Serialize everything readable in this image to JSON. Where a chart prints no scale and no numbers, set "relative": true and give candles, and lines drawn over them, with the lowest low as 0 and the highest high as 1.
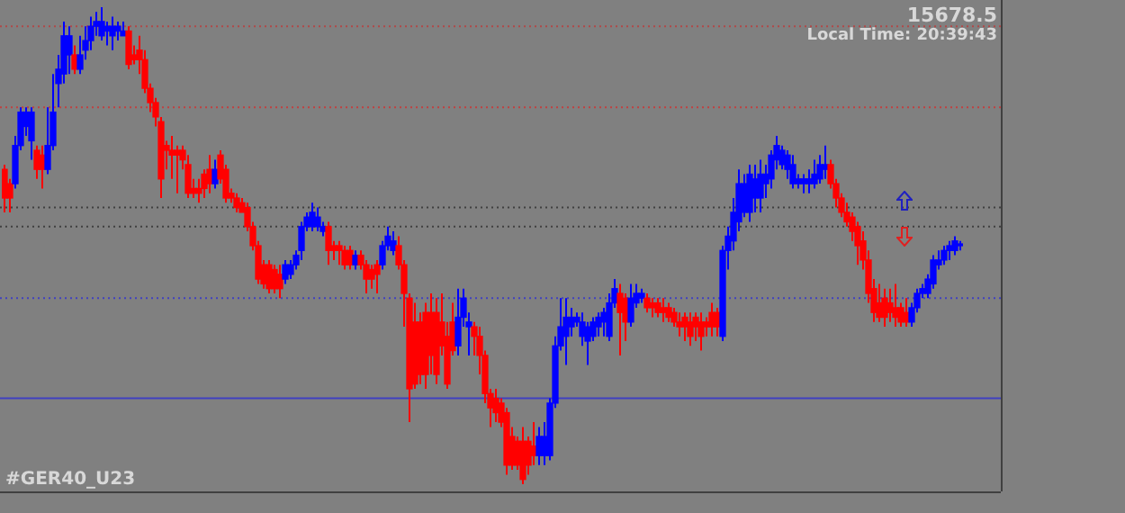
{
  "chart_data": {
    "type": "candlestick",
    "relative": true,
    "tick_labels": false,
    "legend": false,
    "colors": [
      "#ff0000",
      "#ff0000",
      "#0000ff",
      "#0000ff",
      "#0000ff",
      "#0000ff",
      "#ff0000",
      "#ff0000",
      "#0000ff",
      "#0000ff",
      "#0000ff",
      "#0000ff",
      "#0000ff",
      "#ff0000",
      "#0000ff",
      "#0000ff",
      "#0000ff",
      "#0000ff",
      "#0000ff",
      "#0000ff",
      "#0000ff",
      "#0000ff",
      "#0000ff",
      "#ff0000",
      "#ff0000",
      "#ff0000",
      "#ff0000",
      "#ff0000",
      "#ff0000",
      "#ff0000",
      "#ff0000",
      "#ff0000",
      "#ff0000",
      "#ff0000",
      "#ff0000",
      "#ff0000",
      "#ff0000",
      "#ff0000",
      "#ff0000",
      "#0000ff",
      "#ff0000",
      "#ff0000",
      "#ff0000",
      "#ff0000",
      "#ff0000",
      "#ff0000",
      "#ff0000",
      "#ff0000",
      "#ff0000",
      "#ff0000",
      "#ff0000",
      "#ff0000",
      "#0000ff",
      "#0000ff",
      "#0000ff",
      "#0000ff",
      "#0000ff",
      "#0000ff",
      "#0000ff",
      "#0000ff",
      "#ff0000",
      "#ff0000",
      "#ff0000",
      "#ff0000",
      "#ff0000",
      "#0000ff",
      "#ff0000",
      "#ff0000",
      "#ff0000",
      "#ff0000",
      "#0000ff",
      "#0000ff",
      "#0000ff",
      "#ff0000",
      "#ff0000",
      "#ff0000",
      "#ff0000",
      "#ff0000",
      "#ff0000",
      "#ff0000",
      "#ff0000",
      "#ff0000",
      "#ff0000",
      "#ff0000",
      "#0000ff",
      "#0000ff",
      "#0000ff",
      "#ff0000",
      "#ff0000",
      "#ff0000",
      "#ff0000",
      "#ff0000",
      "#ff0000",
      "#ff0000",
      "#ff0000",
      "#ff0000",
      "#ff0000",
      "#ff0000",
      "#ff0000",
      "#0000ff",
      "#0000ff",
      "#0000ff",
      "#0000ff",
      "#0000ff",
      "#0000ff",
      "#0000ff",
      "#0000ff",
      "#0000ff",
      "#0000ff",
      "#0000ff",
      "#0000ff",
      "#0000ff",
      "#0000ff",
      "#0000ff",
      "#ff0000",
      "#ff0000",
      "#0000ff",
      "#0000ff",
      "#0000ff",
      "#ff0000",
      "#ff0000",
      "#ff0000",
      "#ff0000",
      "#ff0000",
      "#ff0000",
      "#ff0000",
      "#ff0000",
      "#ff0000",
      "#ff0000",
      "#ff0000",
      "#ff0000",
      "#ff0000",
      "#ff0000",
      "#0000ff",
      "#0000ff",
      "#0000ff",
      "#0000ff",
      "#0000ff",
      "#0000ff",
      "#0000ff",
      "#0000ff",
      "#0000ff",
      "#0000ff",
      "#0000ff",
      "#0000ff",
      "#0000ff",
      "#0000ff",
      "#0000ff",
      "#0000ff",
      "#0000ff",
      "#0000ff",
      "#0000ff",
      "#0000ff",
      "#ff0000",
      "#ff0000",
      "#ff0000",
      "#ff0000",
      "#ff0000",
      "#ff0000",
      "#ff0000",
      "#ff0000",
      "#ff0000",
      "#ff0000",
      "#ff0000",
      "#ff0000",
      "#ff0000",
      "#ff0000",
      "#ff0000",
      "#0000ff",
      "#0000ff",
      "#0000ff",
      "#0000ff",
      "#0000ff",
      "#0000ff",
      "#0000ff",
      "#0000ff",
      "#0000ff",
      "#0000ff"
    ],
    "annotations": [
      "15678.5",
      "Local Time: 20:39:43",
      "#GER40_U23"
    ],
    "ref_lines": [
      {
        "axis": "y",
        "value": 0.96,
        "color": "#b04848",
        "line_style": "dotted"
      },
      {
        "axis": "y",
        "value": 0.79,
        "color": "#c04040",
        "line_style": "dotted"
      },
      {
        "axis": "y",
        "value": 0.58,
        "color": "#404040",
        "line_style": "dotted"
      },
      {
        "axis": "y",
        "value": 0.54,
        "color": "#404040",
        "line_style": "dotted"
      },
      {
        "axis": "y",
        "value": 0.39,
        "color": "#4040c0",
        "line_style": "dotted"
      },
      {
        "axis": "y",
        "value": 0.18,
        "color": "#4040c0",
        "line_style": "solid"
      }
    ],
    "categories": [
      null,
      null,
      null,
      null,
      null,
      null,
      null,
      null,
      null,
      null,
      null,
      null,
      null,
      null,
      null,
      null,
      null,
      null,
      null,
      null,
      null,
      null,
      null,
      null,
      null,
      null,
      null,
      null,
      null,
      null,
      null,
      null,
      null,
      null,
      null,
      null,
      null,
      null,
      null,
      null,
      null,
      null,
      null,
      null,
      null,
      null,
      null,
      null,
      null,
      null,
      null,
      null,
      null,
      null,
      null,
      null,
      null,
      null,
      null,
      null,
      null,
      null,
      null,
      null,
      null,
      null,
      null,
      null,
      null,
      null,
      null,
      null,
      null,
      null,
      null,
      null,
      null,
      null,
      null,
      null,
      null,
      null,
      null,
      null,
      null,
      null,
      null,
      null,
      null,
      null,
      null,
      null,
      null,
      null,
      null,
      null,
      null,
      null,
      null,
      null,
      null,
      null,
      null,
      null,
      null,
      null,
      null,
      null,
      null,
      null,
      null,
      null,
      null,
      null,
      null,
      null,
      null,
      null,
      null,
      null,
      null,
      null,
      null,
      null,
      null,
      null,
      null,
      null,
      null,
      null,
      null,
      null,
      null,
      null,
      null,
      null,
      null,
      null,
      null,
      null,
      null,
      null,
      null,
      null,
      null,
      null,
      null,
      null,
      null,
      null,
      null,
      null,
      null,
      null,
      null,
      null,
      null,
      null,
      null,
      null,
      null,
      null,
      null,
      null,
      null,
      null,
      null,
      null,
      null,
      null,
      null,
      null,
      null,
      null,
      null,
      null,
      null,
      null
    ],
    "ohlc": [
      [
        0.66,
        0.67,
        0.57,
        0.6
      ],
      [
        0.63,
        0.64,
        0.57,
        0.6
      ],
      [
        0.63,
        0.73,
        0.62,
        0.71
      ],
      [
        0.71,
        0.79,
        0.7,
        0.78
      ],
      [
        0.75,
        0.79,
        0.73,
        0.78
      ],
      [
        0.72,
        0.79,
        0.68,
        0.78
      ],
      [
        0.7,
        0.71,
        0.64,
        0.66
      ],
      [
        0.69,
        0.71,
        0.62,
        0.66
      ],
      [
        0.66,
        0.79,
        0.65,
        0.71
      ],
      [
        0.71,
        0.86,
        0.7,
        0.78
      ],
      [
        0.84,
        0.9,
        0.79,
        0.87
      ],
      [
        0.86,
        0.97,
        0.84,
        0.94
      ],
      [
        0.9,
        0.96,
        0.86,
        0.94
      ],
      [
        0.9,
        0.92,
        0.86,
        0.87
      ],
      [
        0.87,
        0.94,
        0.86,
        0.9
      ],
      [
        0.91,
        0.96,
        0.89,
        0.93
      ],
      [
        0.93,
        0.98,
        0.91,
        0.96
      ],
      [
        0.96,
        0.99,
        0.94,
        0.97
      ],
      [
        0.94,
        1.0,
        0.93,
        0.97
      ],
      [
        0.95,
        0.97,
        0.92,
        0.96
      ],
      [
        0.94,
        0.98,
        0.91,
        0.96
      ],
      [
        0.95,
        0.97,
        0.93,
        0.96
      ],
      [
        0.94,
        0.97,
        0.94,
        0.95
      ],
      [
        0.95,
        0.96,
        0.87,
        0.88
      ],
      [
        0.9,
        0.92,
        0.88,
        0.89
      ],
      [
        0.91,
        0.94,
        0.86,
        0.89
      ],
      [
        0.89,
        0.91,
        0.82,
        0.83
      ],
      [
        0.83,
        0.84,
        0.78,
        0.8
      ],
      [
        0.8,
        0.81,
        0.75,
        0.77
      ],
      [
        0.76,
        0.77,
        0.6,
        0.64
      ],
      [
        0.71,
        0.72,
        0.66,
        0.7
      ],
      [
        0.7,
        0.73,
        0.64,
        0.69
      ],
      [
        0.7,
        0.71,
        0.61,
        0.69
      ],
      [
        0.7,
        0.71,
        0.66,
        0.68
      ],
      [
        0.67,
        0.69,
        0.6,
        0.61
      ],
      [
        0.62,
        0.64,
        0.6,
        0.61
      ],
      [
        0.62,
        0.64,
        0.59,
        0.61
      ],
      [
        0.65,
        0.66,
        0.6,
        0.62
      ],
      [
        0.66,
        0.69,
        0.61,
        0.63
      ],
      [
        0.63,
        0.68,
        0.62,
        0.66
      ],
      [
        0.69,
        0.7,
        0.63,
        0.64
      ],
      [
        0.66,
        0.67,
        0.59,
        0.6
      ],
      [
        0.61,
        0.62,
        0.59,
        0.6
      ],
      [
        0.6,
        0.61,
        0.57,
        0.58
      ],
      [
        0.59,
        0.6,
        0.57,
        0.57
      ],
      [
        0.58,
        0.59,
        0.53,
        0.54
      ],
      [
        0.54,
        0.55,
        0.49,
        0.5
      ],
      [
        0.5,
        0.51,
        0.42,
        0.43
      ],
      [
        0.46,
        0.47,
        0.41,
        0.42
      ],
      [
        0.46,
        0.47,
        0.4,
        0.41
      ],
      [
        0.45,
        0.46,
        0.4,
        0.41
      ],
      [
        0.44,
        0.46,
        0.39,
        0.41
      ],
      [
        0.43,
        0.47,
        0.42,
        0.46
      ],
      [
        0.44,
        0.47,
        0.43,
        0.46
      ],
      [
        0.46,
        0.49,
        0.45,
        0.48
      ],
      [
        0.49,
        0.55,
        0.47,
        0.54
      ],
      [
        0.54,
        0.57,
        0.53,
        0.56
      ],
      [
        0.54,
        0.59,
        0.53,
        0.57
      ],
      [
        0.54,
        0.58,
        0.53,
        0.56
      ],
      [
        0.53,
        0.55,
        0.52,
        0.54
      ],
      [
        0.54,
        0.55,
        0.46,
        0.49
      ],
      [
        0.5,
        0.51,
        0.47,
        0.49
      ],
      [
        0.5,
        0.51,
        0.46,
        0.49
      ],
      [
        0.49,
        0.5,
        0.45,
        0.46
      ],
      [
        0.49,
        0.5,
        0.45,
        0.46
      ],
      [
        0.46,
        0.49,
        0.45,
        0.48
      ],
      [
        0.48,
        0.49,
        0.45,
        0.46
      ],
      [
        0.46,
        0.47,
        0.4,
        0.43
      ],
      [
        0.45,
        0.46,
        0.41,
        0.43
      ],
      [
        0.46,
        0.47,
        0.4,
        0.44
      ],
      [
        0.46,
        0.51,
        0.45,
        0.5
      ],
      [
        0.5,
        0.54,
        0.49,
        0.52
      ],
      [
        0.49,
        0.53,
        0.48,
        0.51
      ],
      [
        0.5,
        0.52,
        0.45,
        0.46
      ],
      [
        0.46,
        0.47,
        0.33,
        0.4
      ],
      [
        0.39,
        0.4,
        0.13,
        0.2
      ],
      [
        0.34,
        0.38,
        0.2,
        0.21
      ],
      [
        0.34,
        0.36,
        0.21,
        0.23
      ],
      [
        0.36,
        0.38,
        0.2,
        0.23
      ],
      [
        0.36,
        0.4,
        0.23,
        0.27
      ],
      [
        0.36,
        0.39,
        0.21,
        0.23
      ],
      [
        0.34,
        0.4,
        0.27,
        0.29
      ],
      [
        0.31,
        0.34,
        0.2,
        0.21
      ],
      [
        0.34,
        0.38,
        0.27,
        0.28
      ],
      [
        0.29,
        0.41,
        0.27,
        0.35
      ],
      [
        0.35,
        0.41,
        0.33,
        0.39
      ],
      [
        0.33,
        0.36,
        0.27,
        0.34
      ],
      [
        0.33,
        0.34,
        0.27,
        0.31
      ],
      [
        0.31,
        0.33,
        0.23,
        0.27
      ],
      [
        0.27,
        0.28,
        0.17,
        0.19
      ],
      [
        0.19,
        0.2,
        0.12,
        0.16
      ],
      [
        0.18,
        0.2,
        0.13,
        0.15
      ],
      [
        0.17,
        0.18,
        0.12,
        0.13
      ],
      [
        0.15,
        0.16,
        0.02,
        0.04
      ],
      [
        0.1,
        0.12,
        0.03,
        0.04
      ],
      [
        0.09,
        0.1,
        0.03,
        0.04
      ],
      [
        0.09,
        0.12,
        0.0,
        0.01
      ],
      [
        0.09,
        0.1,
        0.02,
        0.04
      ],
      [
        0.08,
        0.13,
        0.04,
        0.06
      ],
      [
        0.06,
        0.12,
        0.04,
        0.1
      ],
      [
        0.06,
        0.13,
        0.04,
        0.1
      ],
      [
        0.06,
        0.18,
        0.05,
        0.17
      ],
      [
        0.17,
        0.31,
        0.16,
        0.29
      ],
      [
        0.29,
        0.39,
        0.28,
        0.33
      ],
      [
        0.31,
        0.39,
        0.25,
        0.35
      ],
      [
        0.33,
        0.37,
        0.31,
        0.35
      ],
      [
        0.34,
        0.36,
        0.33,
        0.35
      ],
      [
        0.31,
        0.36,
        0.29,
        0.34
      ],
      [
        0.3,
        0.34,
        0.25,
        0.33
      ],
      [
        0.31,
        0.35,
        0.3,
        0.34
      ],
      [
        0.33,
        0.36,
        0.31,
        0.35
      ],
      [
        0.34,
        0.37,
        0.31,
        0.36
      ],
      [
        0.31,
        0.4,
        0.3,
        0.38
      ],
      [
        0.38,
        0.43,
        0.37,
        0.41
      ],
      [
        0.4,
        0.42,
        0.27,
        0.36
      ],
      [
        0.39,
        0.4,
        0.3,
        0.34
      ],
      [
        0.34,
        0.42,
        0.33,
        0.39
      ],
      [
        0.38,
        0.42,
        0.37,
        0.4
      ],
      [
        0.39,
        0.41,
        0.38,
        0.4
      ],
      [
        0.39,
        0.4,
        0.36,
        0.37
      ],
      [
        0.38,
        0.39,
        0.35,
        0.37
      ],
      [
        0.38,
        0.39,
        0.35,
        0.36
      ],
      [
        0.37,
        0.39,
        0.34,
        0.36
      ],
      [
        0.37,
        0.38,
        0.34,
        0.35
      ],
      [
        0.36,
        0.37,
        0.33,
        0.34
      ],
      [
        0.34,
        0.36,
        0.31,
        0.33
      ],
      [
        0.35,
        0.36,
        0.3,
        0.33
      ],
      [
        0.34,
        0.36,
        0.29,
        0.31
      ],
      [
        0.35,
        0.36,
        0.3,
        0.33
      ],
      [
        0.34,
        0.36,
        0.28,
        0.31
      ],
      [
        0.34,
        0.35,
        0.31,
        0.33
      ],
      [
        0.36,
        0.38,
        0.31,
        0.33
      ],
      [
        0.36,
        0.37,
        0.31,
        0.33
      ],
      [
        0.31,
        0.5,
        0.3,
        0.49
      ],
      [
        0.49,
        0.54,
        0.45,
        0.52
      ],
      [
        0.51,
        0.6,
        0.49,
        0.57
      ],
      [
        0.55,
        0.66,
        0.53,
        0.63
      ],
      [
        0.57,
        0.65,
        0.56,
        0.63
      ],
      [
        0.57,
        0.67,
        0.55,
        0.65
      ],
      [
        0.6,
        0.67,
        0.57,
        0.64
      ],
      [
        0.6,
        0.68,
        0.57,
        0.65
      ],
      [
        0.63,
        0.67,
        0.6,
        0.65
      ],
      [
        0.64,
        0.7,
        0.62,
        0.69
      ],
      [
        0.68,
        0.73,
        0.66,
        0.71
      ],
      [
        0.67,
        0.71,
        0.66,
        0.7
      ],
      [
        0.66,
        0.7,
        0.64,
        0.69
      ],
      [
        0.63,
        0.69,
        0.62,
        0.67
      ],
      [
        0.63,
        0.65,
        0.62,
        0.64
      ],
      [
        0.63,
        0.65,
        0.61,
        0.64
      ],
      [
        0.63,
        0.66,
        0.61,
        0.64
      ],
      [
        0.63,
        0.68,
        0.62,
        0.65
      ],
      [
        0.64,
        0.69,
        0.63,
        0.67
      ],
      [
        0.66,
        0.71,
        0.64,
        0.67
      ],
      [
        0.67,
        0.68,
        0.62,
        0.63
      ],
      [
        0.63,
        0.64,
        0.58,
        0.6
      ],
      [
        0.6,
        0.61,
        0.56,
        0.57
      ],
      [
        0.57,
        0.59,
        0.54,
        0.55
      ],
      [
        0.56,
        0.57,
        0.51,
        0.53
      ],
      [
        0.54,
        0.55,
        0.46,
        0.5
      ],
      [
        0.51,
        0.53,
        0.45,
        0.47
      ],
      [
        0.47,
        0.49,
        0.38,
        0.4
      ],
      [
        0.41,
        0.43,
        0.34,
        0.36
      ],
      [
        0.38,
        0.42,
        0.34,
        0.35
      ],
      [
        0.39,
        0.41,
        0.33,
        0.35
      ],
      [
        0.38,
        0.41,
        0.34,
        0.36
      ],
      [
        0.37,
        0.42,
        0.33,
        0.35
      ],
      [
        0.37,
        0.38,
        0.33,
        0.34
      ],
      [
        0.36,
        0.39,
        0.33,
        0.34
      ],
      [
        0.34,
        0.38,
        0.33,
        0.37
      ],
      [
        0.37,
        0.41,
        0.36,
        0.4
      ],
      [
        0.4,
        0.42,
        0.39,
        0.41
      ],
      [
        0.4,
        0.44,
        0.39,
        0.43
      ],
      [
        0.42,
        0.48,
        0.41,
        0.47
      ],
      [
        0.46,
        0.49,
        0.45,
        0.47
      ],
      [
        0.47,
        0.5,
        0.46,
        0.49
      ],
      [
        0.49,
        0.51,
        0.47,
        0.5
      ],
      [
        0.49,
        0.52,
        0.48,
        0.51
      ],
      [
        0.5,
        0.51,
        0.49,
        0.5
      ]
    ]
  }
}
